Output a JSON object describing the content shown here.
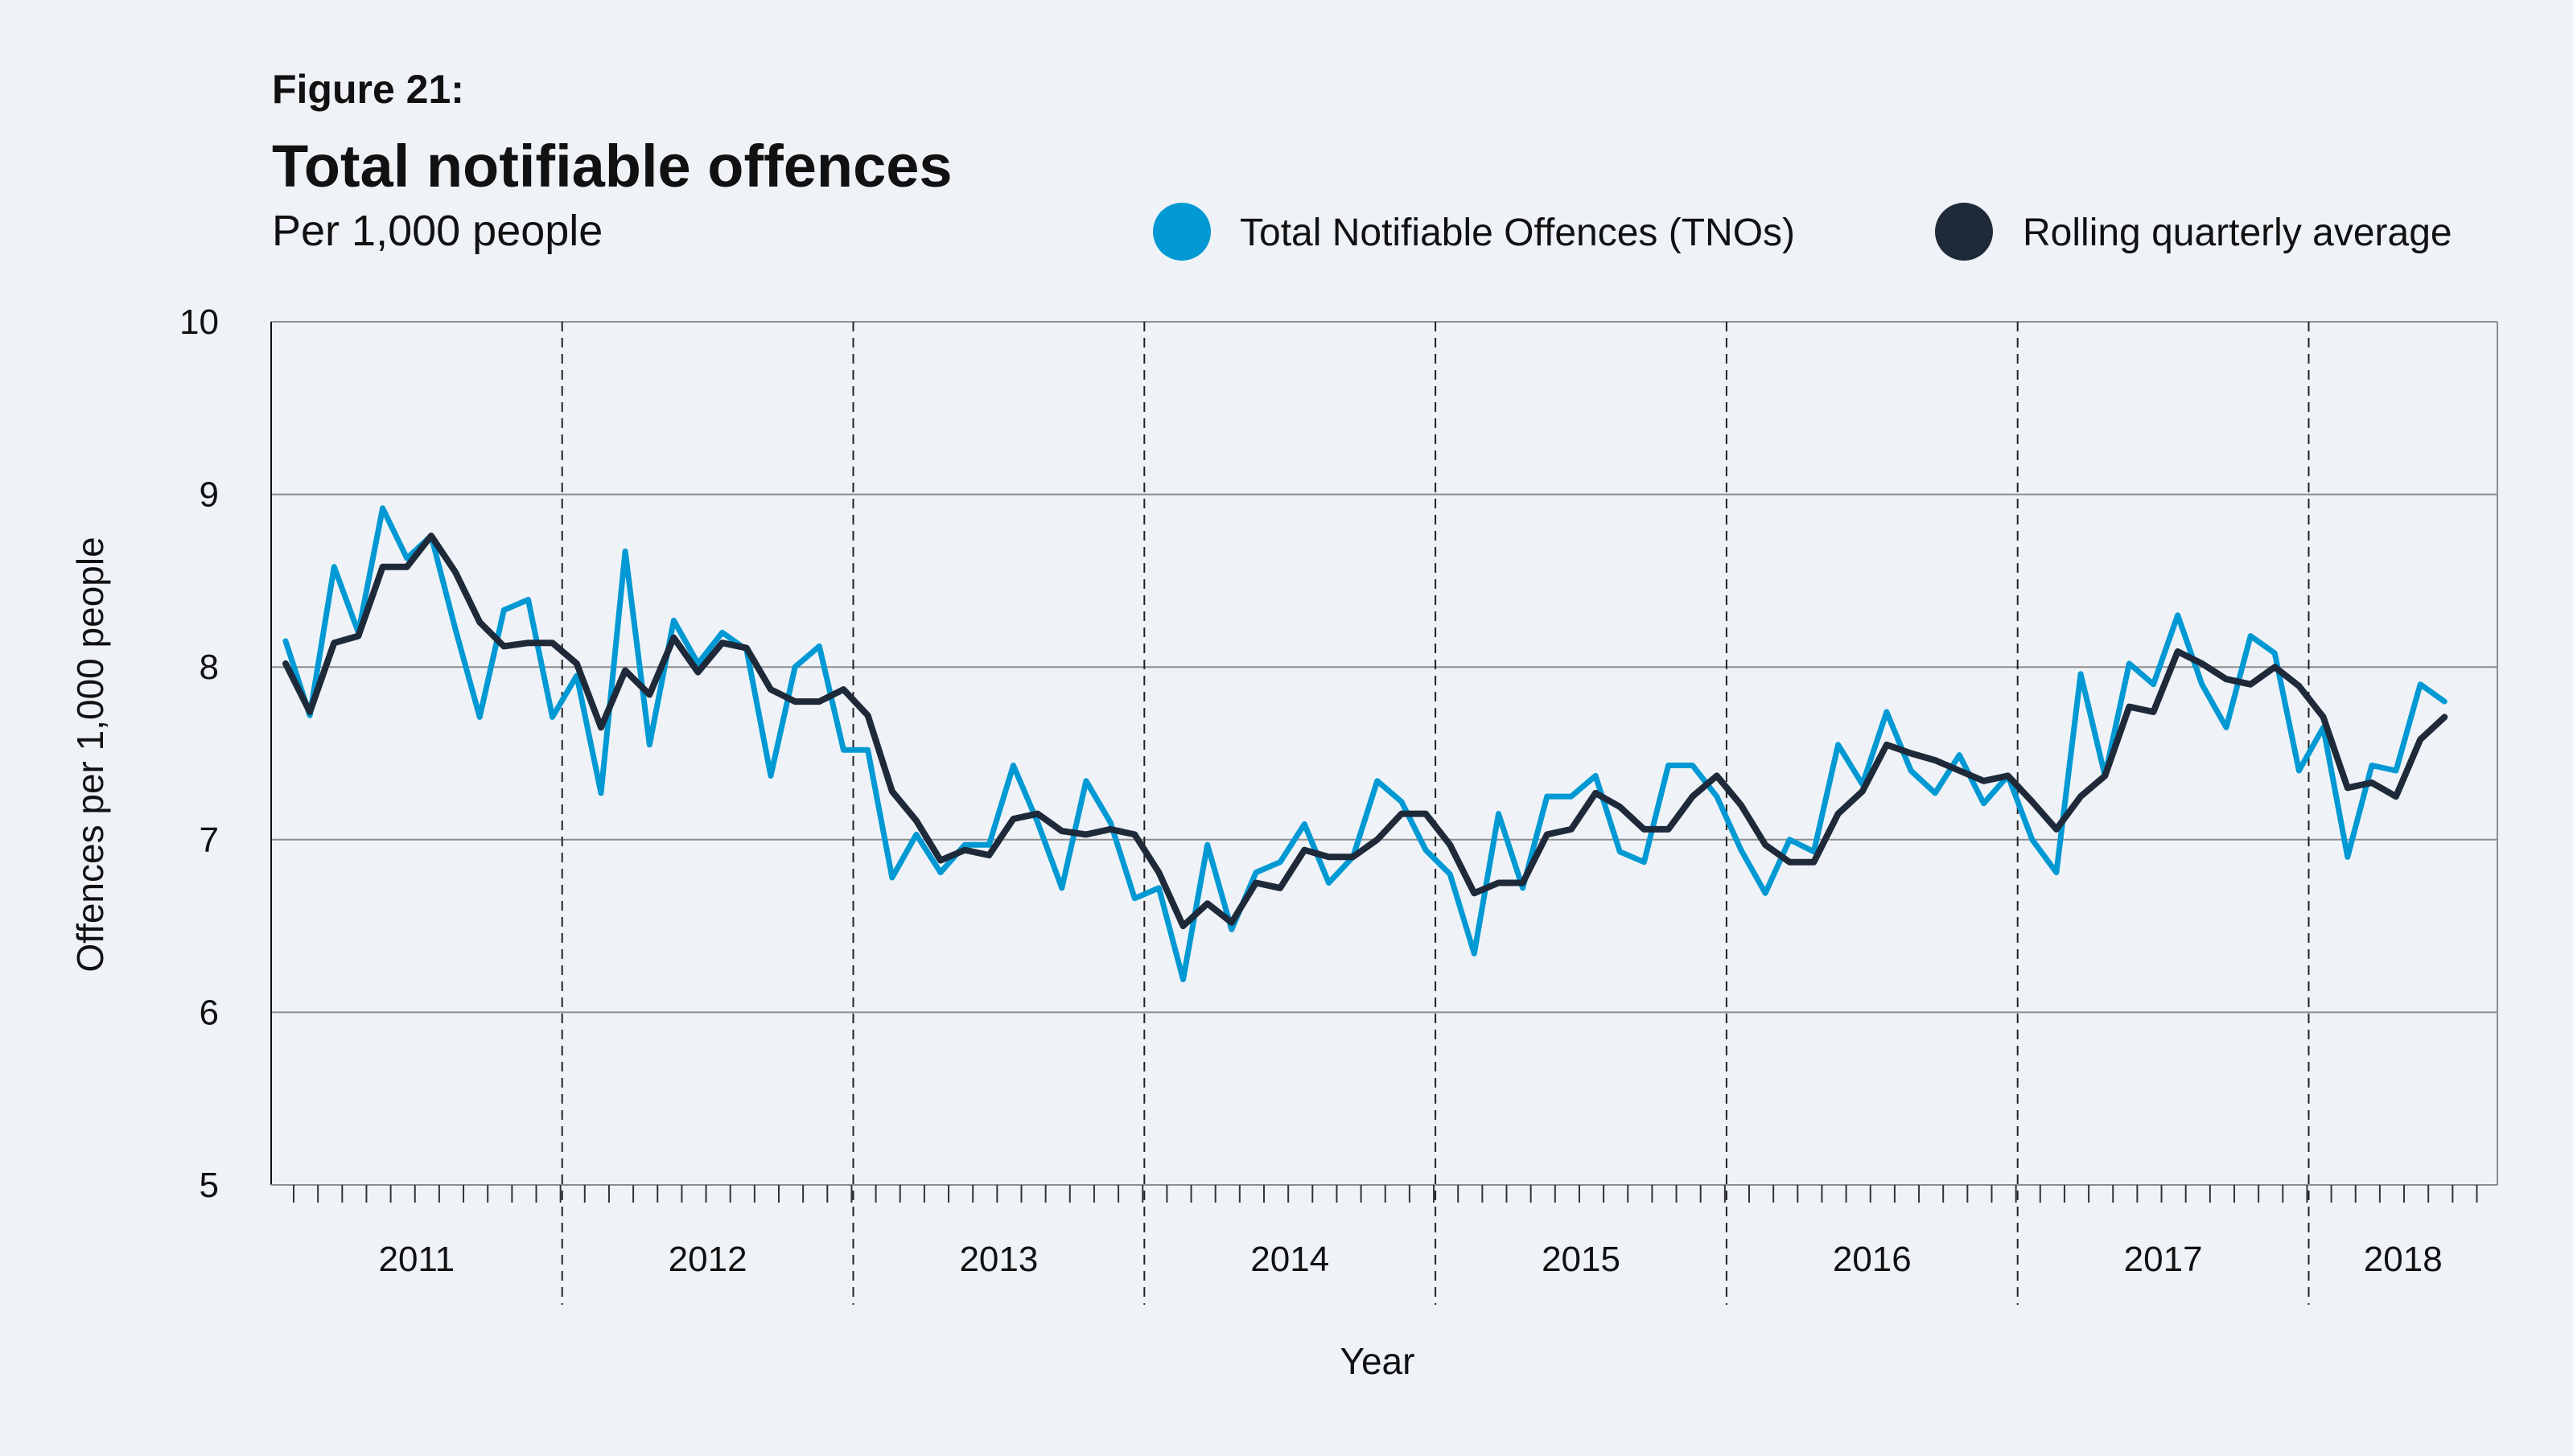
{
  "figure_label": "Figure 21:",
  "chart_data": {
    "type": "line",
    "title": "Total notifiable offences",
    "subtitle": "Per 1,000 people",
    "xlabel": "Year",
    "ylabel": "Offences per 1,000 people",
    "ylim": [
      5,
      10
    ],
    "yticks": [
      "5",
      "6",
      "7",
      "8",
      "9",
      "10"
    ],
    "grid": true,
    "legend_position": "top-right",
    "x_frequency": "monthly",
    "x_start": "2011-01",
    "year_labels": [
      "2011",
      "2012",
      "2013",
      "2014",
      "2015",
      "2016",
      "2017",
      "2018"
    ],
    "series": [
      {
        "name": "Total Notifiable Offences (TNOs)",
        "color": "#0099d4",
        "values": [
          8.15,
          7.72,
          8.58,
          8.2,
          8.92,
          8.63,
          8.76,
          8.22,
          7.71,
          8.33,
          8.39,
          7.71,
          7.95,
          7.27,
          8.67,
          7.55,
          8.27,
          8.02,
          8.2,
          8.1,
          7.37,
          8.0,
          8.12,
          7.52,
          7.52,
          6.78,
          7.03,
          6.81,
          6.97,
          6.97,
          7.43,
          7.1,
          6.72,
          7.34,
          7.1,
          6.66,
          6.72,
          6.19,
          6.97,
          6.48,
          6.81,
          6.87,
          7.09,
          6.75,
          6.9,
          7.34,
          7.22,
          6.94,
          6.8,
          6.34,
          7.15,
          6.72,
          7.25,
          7.25,
          7.37,
          6.93,
          6.87,
          7.43,
          7.43,
          7.25,
          6.94,
          6.69,
          7.0,
          6.93,
          7.55,
          7.32,
          7.74,
          7.4,
          7.27,
          7.49,
          7.21,
          7.37,
          7.0,
          6.81,
          7.96,
          7.37,
          8.02,
          7.9,
          8.3,
          7.9,
          7.65,
          8.18,
          8.08,
          7.4,
          7.65,
          6.9,
          7.43,
          7.4,
          7.9,
          7.8
        ]
      },
      {
        "name": "Rolling quarterly average",
        "color": "#1e2a3a",
        "values": [
          8.02,
          7.74,
          8.14,
          8.18,
          8.58,
          8.58,
          8.76,
          8.55,
          8.26,
          8.12,
          8.14,
          8.14,
          8.02,
          7.65,
          7.98,
          7.84,
          8.17,
          7.97,
          8.14,
          8.11,
          7.87,
          7.8,
          7.8,
          7.87,
          7.72,
          7.28,
          7.11,
          6.88,
          6.94,
          6.91,
          7.12,
          7.15,
          7.05,
          7.03,
          7.06,
          7.03,
          6.81,
          6.5,
          6.63,
          6.52,
          6.75,
          6.72,
          6.94,
          6.9,
          6.9,
          7.0,
          7.15,
          7.15,
          6.97,
          6.69,
          6.75,
          6.75,
          7.03,
          7.06,
          7.27,
          7.19,
          7.06,
          7.06,
          7.25,
          7.37,
          7.2,
          6.97,
          6.87,
          6.87,
          7.15,
          7.28,
          7.55,
          7.5,
          7.46,
          7.4,
          7.34,
          7.37,
          7.22,
          7.06,
          7.25,
          7.37,
          7.77,
          7.74,
          8.09,
          8.02,
          7.93,
          7.9,
          8.0,
          7.89,
          7.71,
          7.3,
          7.33,
          7.25,
          7.58,
          7.71
        ]
      }
    ]
  }
}
